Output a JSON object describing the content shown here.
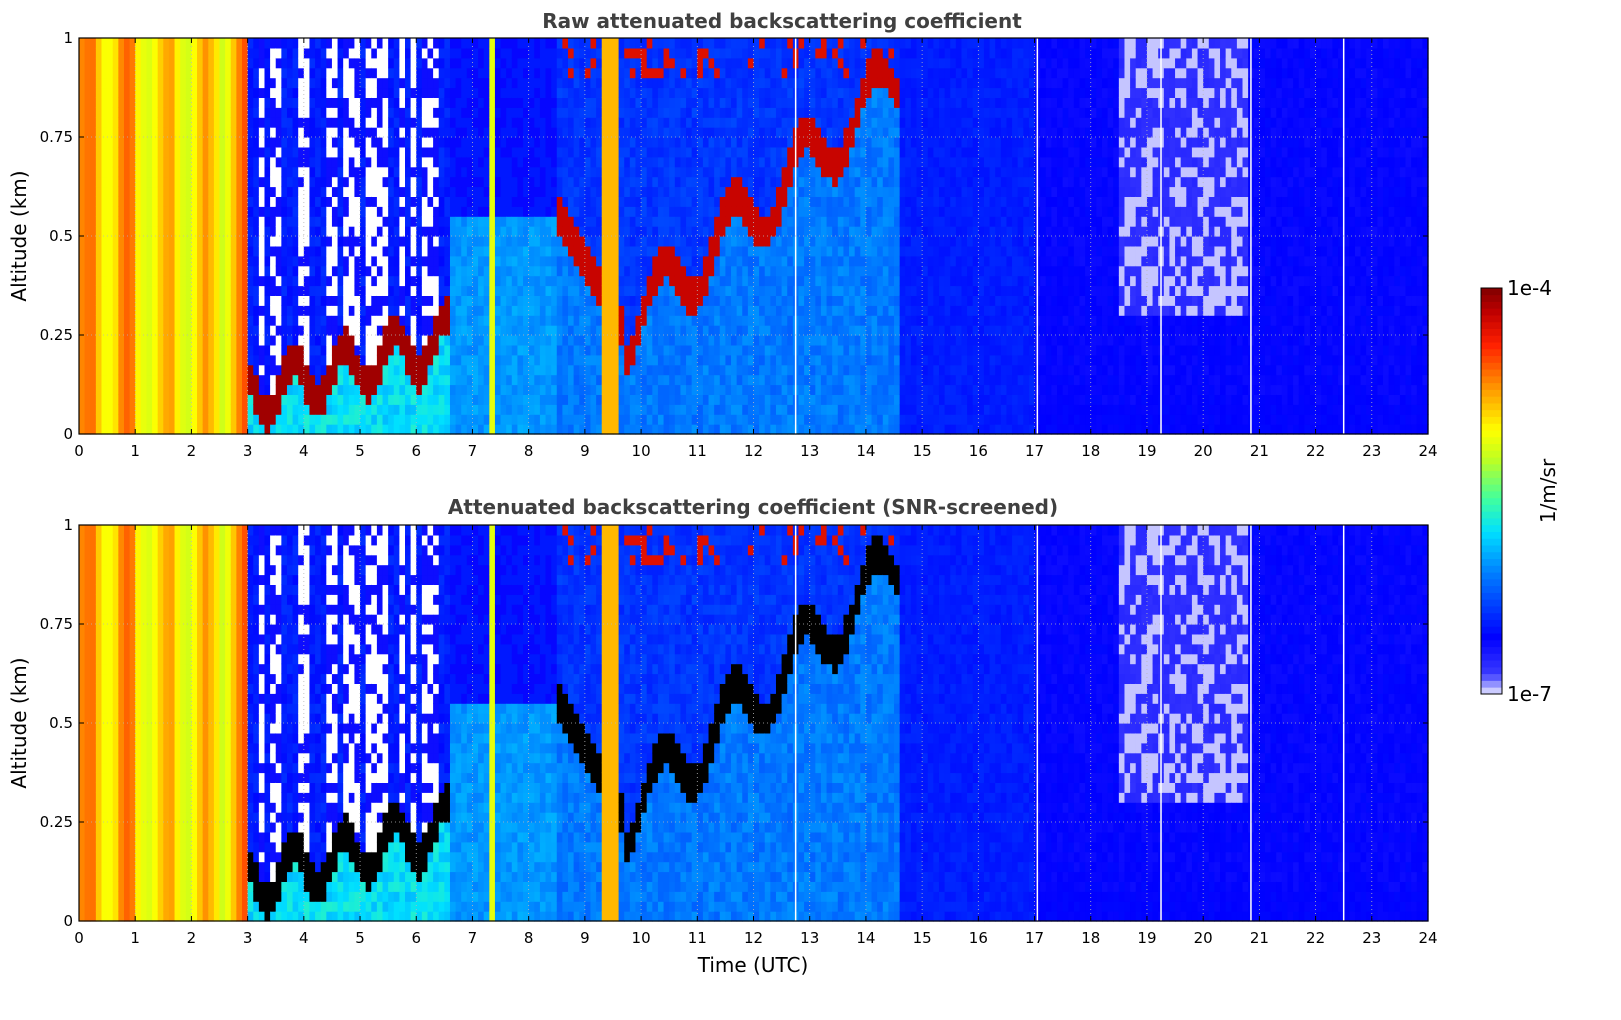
{
  "chart_data": [
    {
      "type": "heatmap",
      "title": "Raw attenuated backscattering coefficient",
      "xlabel": "",
      "ylabel": "Altitude (km)",
      "xlim": [
        0,
        24
      ],
      "ylim": [
        0,
        1
      ],
      "x_ticks": [
        "0",
        "1",
        "2",
        "3",
        "4",
        "5",
        "6",
        "7",
        "8",
        "9",
        "10",
        "11",
        "12",
        "13",
        "14",
        "15",
        "16",
        "17",
        "18",
        "19",
        "20",
        "21",
        "22",
        "23",
        "24"
      ],
      "y_ticks": [
        "0",
        "0.25",
        "0.5",
        "0.75",
        "1"
      ],
      "grid": true,
      "colorscale": "jet",
      "color_range": [
        "1e-7",
        "1e-4"
      ],
      "features": {
        "fog_high_backscatter_hours": [
          0,
          3.05
        ],
        "low_cloud_layer_hours": [
          3.0,
          6.5
        ],
        "rising_cloud_base_hours": [
          8.5,
          14.6
        ],
        "clear_low_signal_hours": [
          15,
          24
        ]
      }
    },
    {
      "type": "heatmap",
      "title": "Attenuated backscattering coefficient (SNR-screened)",
      "xlabel": "Time (UTC)",
      "ylabel": "Altitude (km)",
      "xlim": [
        0,
        24
      ],
      "ylim": [
        0,
        1
      ],
      "x_ticks": [
        "0",
        "1",
        "2",
        "3",
        "4",
        "5",
        "6",
        "7",
        "8",
        "9",
        "10",
        "11",
        "12",
        "13",
        "14",
        "15",
        "16",
        "17",
        "18",
        "19",
        "20",
        "21",
        "22",
        "23",
        "24"
      ],
      "y_ticks": [
        "0",
        "0.25",
        "0.5",
        "0.75",
        "1"
      ],
      "grid": true,
      "colorscale": "jet",
      "color_range": [
        "1e-7",
        "1e-4"
      ],
      "saturation_color": "#000000"
    }
  ],
  "colorbar": {
    "label": "1/m/sr",
    "max_label": "1e-4",
    "min_label": "1e-7"
  }
}
